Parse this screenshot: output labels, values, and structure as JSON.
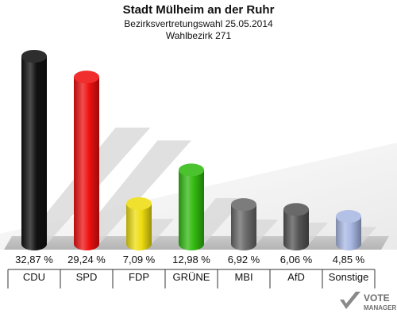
{
  "header": {
    "title": "Stadt Mülheim an der Ruhr",
    "subtitle": "Bezirksvertretungswahl 25.05.2014",
    "district": "Wahlbezirk 271"
  },
  "logo": {
    "line1": "VOTE",
    "line2": "MANAGER"
  },
  "chart_data": {
    "type": "bar",
    "categories": [
      "CDU",
      "SPD",
      "FDP",
      "GRÜNE",
      "MBI",
      "AfD",
      "Sonstige"
    ],
    "values": [
      32.87,
      29.24,
      7.09,
      12.98,
      6.92,
      6.06,
      4.85
    ],
    "value_labels": [
      "32,87 %",
      "29,24 %",
      "7,09 %",
      "12,98 %",
      "6,92 %",
      "6,06 %",
      "4,85 %"
    ],
    "colors": [
      "#111111",
      "#ee1111",
      "#eedd11",
      "#33bb11",
      "#6a6a6a",
      "#555555",
      "#a9b8e3"
    ],
    "ylim": [
      0,
      33
    ]
  }
}
